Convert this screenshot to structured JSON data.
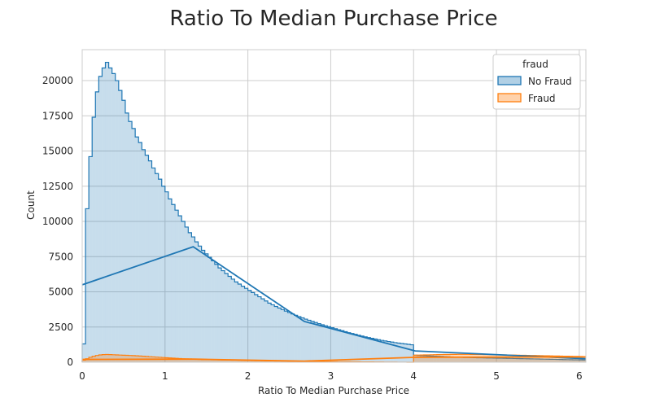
{
  "chart_data": {
    "type": "histogram",
    "title": "Ratio To Median Purchase Price",
    "xlabel": "Ratio To Median Purchase Price",
    "ylabel": "Count",
    "xlim": [
      0,
      6.08
    ],
    "ylim": [
      0,
      22200
    ],
    "xticks": [
      0,
      1,
      2,
      3,
      4,
      5,
      6
    ],
    "yticks": [
      0,
      2500,
      5000,
      7500,
      10000,
      12500,
      15000,
      17500,
      20000
    ],
    "grid": true,
    "legend": {
      "title": "fraud",
      "position": "top-right"
    },
    "bin_width": 0.04,
    "series": [
      {
        "name": "No Fraud",
        "color": "#1f77b4",
        "bins": [
          [
            0.0,
            1300
          ],
          [
            0.04,
            10900
          ],
          [
            0.08,
            14600
          ],
          [
            0.12,
            17400
          ],
          [
            0.16,
            19200
          ],
          [
            0.2,
            20300
          ],
          [
            0.24,
            20900
          ],
          [
            0.28,
            21300
          ],
          [
            0.32,
            20900
          ],
          [
            0.36,
            20500
          ],
          [
            0.4,
            20000
          ],
          [
            0.44,
            19300
          ],
          [
            0.48,
            18600
          ],
          [
            0.52,
            17700
          ],
          [
            0.56,
            17100
          ],
          [
            0.6,
            16600
          ],
          [
            0.64,
            16000
          ],
          [
            0.68,
            15600
          ],
          [
            0.72,
            15100
          ],
          [
            0.76,
            14700
          ],
          [
            0.8,
            14300
          ],
          [
            0.84,
            13800
          ],
          [
            0.88,
            13400
          ],
          [
            0.92,
            13000
          ],
          [
            0.96,
            12500
          ],
          [
            1.0,
            12100
          ],
          [
            1.04,
            11600
          ],
          [
            1.08,
            11200
          ],
          [
            1.12,
            10800
          ],
          [
            1.16,
            10400
          ],
          [
            1.2,
            10000
          ],
          [
            1.24,
            9600
          ],
          [
            1.28,
            9200
          ],
          [
            1.32,
            8900
          ],
          [
            1.36,
            8550
          ],
          [
            1.4,
            8250
          ],
          [
            1.44,
            7950
          ],
          [
            1.48,
            7700
          ],
          [
            1.52,
            7450
          ],
          [
            1.56,
            7200
          ],
          [
            1.6,
            6950
          ],
          [
            1.64,
            6700
          ],
          [
            1.68,
            6500
          ],
          [
            1.72,
            6300
          ],
          [
            1.76,
            6100
          ],
          [
            1.8,
            5900
          ],
          [
            1.84,
            5700
          ],
          [
            1.88,
            5550
          ],
          [
            1.92,
            5400
          ],
          [
            1.96,
            5250
          ],
          [
            2.0,
            5100
          ],
          [
            2.04,
            4950
          ],
          [
            2.08,
            4800
          ],
          [
            2.12,
            4650
          ],
          [
            2.16,
            4500
          ],
          [
            2.2,
            4350
          ],
          [
            2.24,
            4200
          ],
          [
            2.28,
            4080
          ],
          [
            2.32,
            3960
          ],
          [
            2.36,
            3850
          ],
          [
            2.4,
            3740
          ],
          [
            2.44,
            3630
          ],
          [
            2.48,
            3530
          ],
          [
            2.52,
            3430
          ],
          [
            2.56,
            3330
          ],
          [
            2.6,
            3240
          ],
          [
            2.64,
            3150
          ],
          [
            2.68,
            3060
          ],
          [
            2.72,
            2980
          ],
          [
            2.76,
            2900
          ],
          [
            2.8,
            2820
          ],
          [
            2.84,
            2740
          ],
          [
            2.88,
            2660
          ],
          [
            2.92,
            2590
          ],
          [
            2.96,
            2520
          ],
          [
            3.0,
            2450
          ],
          [
            3.04,
            2380
          ],
          [
            3.08,
            2310
          ],
          [
            3.12,
            2240
          ],
          [
            3.16,
            2170
          ],
          [
            3.2,
            2100
          ],
          [
            3.24,
            2040
          ],
          [
            3.28,
            1980
          ],
          [
            3.32,
            1920
          ],
          [
            3.36,
            1860
          ],
          [
            3.4,
            1800
          ],
          [
            3.44,
            1750
          ],
          [
            3.48,
            1700
          ],
          [
            3.52,
            1650
          ],
          [
            3.56,
            1600
          ],
          [
            3.6,
            1550
          ],
          [
            3.64,
            1510
          ],
          [
            3.68,
            1470
          ],
          [
            3.72,
            1430
          ],
          [
            3.76,
            1390
          ],
          [
            3.8,
            1360
          ],
          [
            3.84,
            1330
          ],
          [
            3.88,
            1300
          ],
          [
            3.92,
            1270
          ],
          [
            3.96,
            1240
          ],
          [
            4.0,
            500
          ],
          [
            4.04,
            480
          ],
          [
            4.08,
            470
          ],
          [
            4.12,
            460
          ],
          [
            4.16,
            450
          ],
          [
            4.2,
            440
          ],
          [
            4.24,
            430
          ],
          [
            4.28,
            420
          ],
          [
            4.32,
            410
          ],
          [
            4.36,
            400
          ],
          [
            4.4,
            390
          ],
          [
            4.44,
            380
          ],
          [
            4.48,
            370
          ],
          [
            4.52,
            360
          ],
          [
            4.56,
            350
          ],
          [
            4.6,
            340
          ],
          [
            4.64,
            335
          ],
          [
            4.68,
            330
          ],
          [
            4.72,
            325
          ],
          [
            4.76,
            320
          ],
          [
            4.8,
            315
          ],
          [
            4.84,
            310
          ],
          [
            4.88,
            305
          ],
          [
            4.92,
            300
          ],
          [
            4.96,
            295
          ],
          [
            5.0,
            290
          ],
          [
            5.04,
            285
          ],
          [
            5.08,
            280
          ],
          [
            5.12,
            275
          ],
          [
            5.16,
            270
          ],
          [
            5.2,
            265
          ],
          [
            5.24,
            260
          ],
          [
            5.28,
            255
          ],
          [
            5.32,
            250
          ],
          [
            5.36,
            245
          ],
          [
            5.4,
            240
          ],
          [
            5.44,
            235
          ],
          [
            5.48,
            230
          ],
          [
            5.52,
            225
          ],
          [
            5.56,
            220
          ],
          [
            5.6,
            215
          ],
          [
            5.64,
            210
          ],
          [
            5.68,
            205
          ],
          [
            5.72,
            200
          ],
          [
            5.76,
            195
          ],
          [
            5.8,
            190
          ],
          [
            5.84,
            185
          ],
          [
            5.88,
            180
          ],
          [
            5.92,
            175
          ],
          [
            5.96,
            170
          ],
          [
            6.0,
            165
          ],
          [
            6.04,
            160
          ]
        ],
        "wrap_line": [
          [
            0,
            5500
          ],
          [
            1.34,
            8200
          ],
          [
            2.68,
            2900
          ],
          [
            4.02,
            800
          ],
          [
            6.08,
            250
          ]
        ]
      },
      {
        "name": "Fraud",
        "color": "#ff7f0e",
        "bins": [
          [
            0.0,
            150
          ],
          [
            0.04,
            250
          ],
          [
            0.08,
            350
          ],
          [
            0.12,
            420
          ],
          [
            0.16,
            480
          ],
          [
            0.2,
            520
          ],
          [
            0.24,
            540
          ],
          [
            0.28,
            550
          ],
          [
            0.32,
            540
          ],
          [
            0.36,
            530
          ],
          [
            0.4,
            520
          ],
          [
            0.44,
            510
          ],
          [
            0.48,
            500
          ],
          [
            0.52,
            490
          ],
          [
            0.56,
            480
          ],
          [
            0.6,
            470
          ],
          [
            0.64,
            455
          ],
          [
            0.68,
            440
          ],
          [
            0.72,
            425
          ],
          [
            0.76,
            410
          ],
          [
            0.8,
            395
          ],
          [
            0.84,
            380
          ],
          [
            0.88,
            365
          ],
          [
            0.92,
            350
          ],
          [
            0.96,
            335
          ],
          [
            1.0,
            320
          ],
          [
            1.04,
            305
          ],
          [
            1.08,
            290
          ],
          [
            1.12,
            275
          ],
          [
            1.16,
            260
          ],
          [
            1.2,
            250
          ],
          [
            1.24,
            240
          ],
          [
            1.28,
            230
          ],
          [
            1.32,
            220
          ],
          [
            1.36,
            210
          ],
          [
            1.4,
            200
          ],
          [
            1.44,
            190
          ],
          [
            1.48,
            185
          ],
          [
            1.52,
            180
          ],
          [
            1.56,
            175
          ],
          [
            1.6,
            170
          ],
          [
            1.64,
            165
          ],
          [
            1.68,
            160
          ],
          [
            1.72,
            155
          ],
          [
            1.76,
            150
          ],
          [
            1.8,
            145
          ],
          [
            1.84,
            140
          ],
          [
            1.88,
            135
          ],
          [
            1.92,
            130
          ],
          [
            1.96,
            125
          ],
          [
            2.0,
            120
          ],
          [
            2.04,
            115
          ],
          [
            2.08,
            110
          ],
          [
            2.12,
            105
          ],
          [
            2.16,
            100
          ],
          [
            2.2,
            95
          ],
          [
            2.24,
            92
          ],
          [
            2.28,
            89
          ],
          [
            2.32,
            86
          ],
          [
            2.36,
            83
          ],
          [
            2.4,
            80
          ],
          [
            2.44,
            77
          ],
          [
            2.48,
            74
          ],
          [
            2.52,
            71
          ],
          [
            2.56,
            68
          ],
          [
            2.6,
            65
          ],
          [
            2.64,
            62
          ],
          [
            2.68,
            60
          ],
          [
            2.72,
            58
          ],
          [
            2.76,
            56
          ],
          [
            2.8,
            54
          ],
          [
            2.84,
            52
          ],
          [
            2.88,
            50
          ],
          [
            2.92,
            48
          ],
          [
            2.96,
            46
          ],
          [
            3.0,
            44
          ],
          [
            3.04,
            42
          ],
          [
            3.08,
            40
          ],
          [
            3.12,
            38
          ],
          [
            3.16,
            36
          ],
          [
            3.2,
            34
          ],
          [
            3.24,
            32
          ],
          [
            3.28,
            30
          ],
          [
            3.32,
            28
          ],
          [
            3.36,
            26
          ],
          [
            3.4,
            24
          ],
          [
            3.44,
            22
          ],
          [
            3.48,
            20
          ],
          [
            3.52,
            18
          ],
          [
            3.56,
            16
          ],
          [
            3.6,
            14
          ],
          [
            3.64,
            12
          ],
          [
            3.68,
            10
          ],
          [
            3.72,
            8
          ],
          [
            3.76,
            6
          ],
          [
            3.8,
            5
          ],
          [
            3.84,
            4
          ],
          [
            3.88,
            3
          ],
          [
            3.92,
            2
          ],
          [
            3.96,
            1
          ],
          [
            4.0,
            500
          ],
          [
            4.04,
            510
          ],
          [
            4.08,
            515
          ],
          [
            4.12,
            520
          ],
          [
            4.16,
            525
          ],
          [
            4.2,
            530
          ],
          [
            4.24,
            535
          ],
          [
            4.28,
            540
          ],
          [
            4.32,
            545
          ],
          [
            4.36,
            550
          ],
          [
            4.4,
            550
          ],
          [
            4.44,
            555
          ],
          [
            4.48,
            555
          ],
          [
            4.52,
            560
          ],
          [
            4.56,
            560
          ],
          [
            4.6,
            560
          ],
          [
            4.64,
            560
          ],
          [
            4.68,
            558
          ],
          [
            4.72,
            556
          ],
          [
            4.76,
            554
          ],
          [
            4.8,
            552
          ],
          [
            4.84,
            550
          ],
          [
            4.88,
            545
          ],
          [
            4.92,
            540
          ],
          [
            4.96,
            535
          ],
          [
            5.0,
            530
          ],
          [
            5.04,
            525
          ],
          [
            5.08,
            520
          ],
          [
            5.12,
            515
          ],
          [
            5.16,
            510
          ],
          [
            5.2,
            505
          ],
          [
            5.24,
            500
          ],
          [
            5.28,
            495
          ],
          [
            5.32,
            490
          ],
          [
            5.36,
            485
          ],
          [
            5.4,
            480
          ],
          [
            5.44,
            475
          ],
          [
            5.48,
            470
          ],
          [
            5.52,
            465
          ],
          [
            5.56,
            460
          ],
          [
            5.6,
            455
          ],
          [
            5.64,
            450
          ],
          [
            5.68,
            445
          ],
          [
            5.72,
            440
          ],
          [
            5.76,
            435
          ],
          [
            5.8,
            430
          ],
          [
            5.84,
            425
          ],
          [
            5.88,
            420
          ],
          [
            5.92,
            415
          ],
          [
            5.96,
            410
          ],
          [
            6.0,
            405
          ],
          [
            6.04,
            400
          ]
        ],
        "wrap_line": [
          [
            0,
            200
          ],
          [
            1.34,
            220
          ],
          [
            2.68,
            80
          ],
          [
            4.02,
            350
          ],
          [
            6.08,
            380
          ]
        ]
      }
    ]
  }
}
